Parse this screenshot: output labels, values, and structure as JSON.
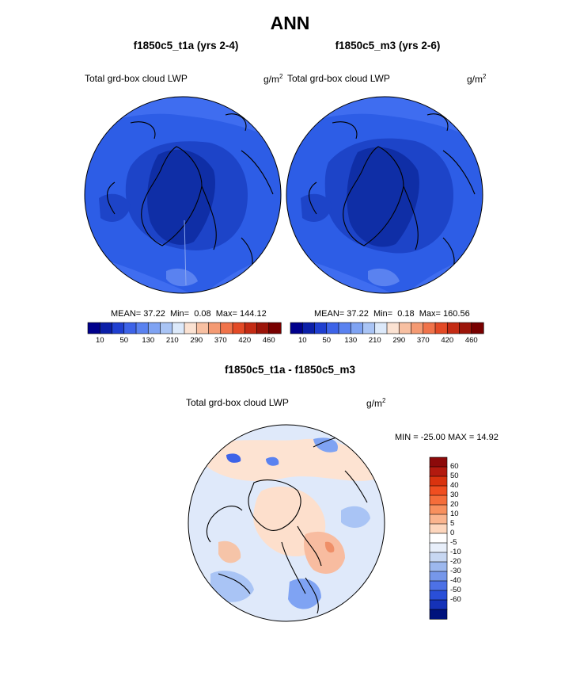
{
  "chart_data": {
    "main_title": "ANN",
    "maps": [
      {
        "id": "left",
        "title": "f1850c5_t1a (yrs 2-4)",
        "field": "Total grd-box cloud LWP",
        "units_base": "g/m",
        "units_exp": "2",
        "stats": {
          "mean_label": "MEAN=",
          "mean": "37.22",
          "min_label": "Min=",
          "min": "0.08",
          "max_label": "Max=",
          "max": "144.12"
        }
      },
      {
        "id": "right",
        "title": "f1850c5_m3 (yrs 2-6)",
        "field": "Total grd-box cloud LWP",
        "units_base": "g/m",
        "units_exp": "2",
        "stats": {
          "mean_label": "MEAN=",
          "mean": "37.22",
          "min_label": "Min=",
          "min": "0.18",
          "max_label": "Max=",
          "max": "160.56"
        }
      }
    ],
    "diff_map": {
      "title": "f1850c5_t1a - f1850c5_m3",
      "field": "Total grd-box cloud LWP",
      "units_base": "g/m",
      "units_exp": "2",
      "minmax_text": "MIN = -25.00 MAX =  14.92"
    },
    "colorbar_horizontal": {
      "colors": [
        "#00008c",
        "#0b1fa8",
        "#1f3fd0",
        "#3d63e8",
        "#5a82f0",
        "#7fa3f3",
        "#a9c4f5",
        "#dce9fa",
        "#fbe2d2",
        "#f8c0a2",
        "#f49a73",
        "#f0734a",
        "#e34a26",
        "#c42b14",
        "#9c150a",
        "#780000"
      ],
      "tick_labels": [
        "10",
        "50",
        "130",
        "210",
        "290",
        "370",
        "420",
        "460"
      ]
    },
    "colorbar_vertical": {
      "colors": [
        "#8c0a0a",
        "#b31a0f",
        "#d9330f",
        "#f04e20",
        "#f56d3a",
        "#f8905e",
        "#fab48e",
        "#fdd6bd",
        "#ffffff",
        "#e8effa",
        "#c7d7f2",
        "#9db8ee",
        "#7697ea",
        "#4d71e6",
        "#2a4fd8",
        "#1532b8",
        "#00127c"
      ],
      "tick_labels": [
        "60",
        "50",
        "40",
        "30",
        "20",
        "10",
        "5",
        "0",
        "-5",
        "-10",
        "-20",
        "-30",
        "-40",
        "-50",
        "-60"
      ]
    }
  }
}
